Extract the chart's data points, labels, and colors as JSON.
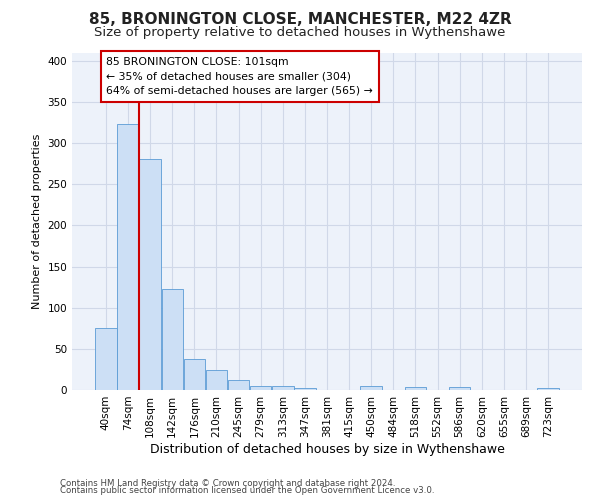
{
  "title": "85, BRONINGTON CLOSE, MANCHESTER, M22 4ZR",
  "subtitle": "Size of property relative to detached houses in Wythenshawe",
  "xlabel": "Distribution of detached houses by size in Wythenshawe",
  "ylabel": "Number of detached properties",
  "footnote1": "Contains HM Land Registry data © Crown copyright and database right 2024.",
  "footnote2": "Contains public sector information licensed under the Open Government Licence v3.0.",
  "bin_labels": [
    "40sqm",
    "74sqm",
    "108sqm",
    "142sqm",
    "176sqm",
    "210sqm",
    "245sqm",
    "279sqm",
    "313sqm",
    "347sqm",
    "381sqm",
    "415sqm",
    "450sqm",
    "484sqm",
    "518sqm",
    "552sqm",
    "586sqm",
    "620sqm",
    "655sqm",
    "689sqm",
    "723sqm"
  ],
  "bar_values": [
    75,
    323,
    281,
    123,
    38,
    24,
    12,
    5,
    5,
    3,
    0,
    0,
    5,
    0,
    4,
    0,
    4,
    0,
    0,
    0,
    3
  ],
  "bar_color": "#ccdff5",
  "bar_edge_color": "#5a9bd5",
  "grid_color": "#d0d8e8",
  "annotation_box_text1": "85 BRONINGTON CLOSE: 101sqm",
  "annotation_box_text2": "← 35% of detached houses are smaller (304)",
  "annotation_box_text3": "64% of semi-detached houses are larger (565) →",
  "annotation_line_color": "#cc0000",
  "annotation_box_edge_color": "#cc0000",
  "ylim": [
    0,
    410
  ],
  "yticks": [
    0,
    50,
    100,
    150,
    200,
    250,
    300,
    350,
    400
  ],
  "background_color": "#edf2fa",
  "title_fontsize": 11,
  "subtitle_fontsize": 9.5,
  "tick_fontsize": 7.5,
  "ylabel_fontsize": 8,
  "xlabel_fontsize": 9
}
